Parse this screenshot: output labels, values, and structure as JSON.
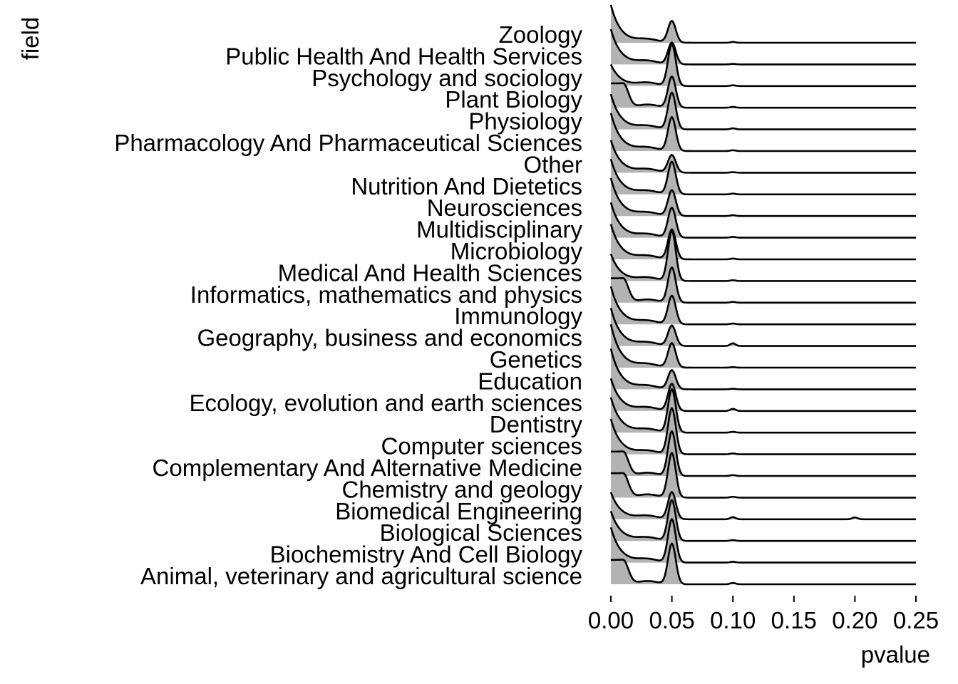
{
  "chart_data": {
    "type": "ridgeline",
    "xlabel": "pvalue",
    "ylabel": "field",
    "xlim": [
      0,
      0.25
    ],
    "x_ticks": [
      "0.00",
      "0.05",
      "0.10",
      "0.15",
      "0.20",
      "0.25"
    ],
    "fill_color": "#b3b3b3",
    "line_color": "#000000",
    "grid": false,
    "categories": [
      "Animal, veterinary and agricultural science",
      "Biochemistry And Cell Biology",
      "Biological Sciences",
      "Biomedical Engineering",
      "Chemistry and geology",
      "Complementary And Alternative Medicine",
      "Computer sciences",
      "Dentistry",
      "Ecology, evolution and earth sciences",
      "Education",
      "Genetics",
      "Geography, business and economics",
      "Immunology",
      "Informatics, mathematics and physics",
      "Medical And Health Sciences",
      "Microbiology",
      "Multidisciplinary",
      "Neurosciences",
      "Nutrition And Dietetics",
      "Other",
      "Pharmacology And Pharmaceutical Sciences",
      "Physiology",
      "Plant Biology",
      "Psychology and sociology",
      "Public Health And Health Services",
      "Zoology"
    ],
    "series": [
      {
        "name": "Animal, veterinary and agricultural science",
        "peak_zero": 0.9,
        "peak_05": 1.5,
        "peak_10": 0.05,
        "peak_20": 0.0,
        "shape": "plateau"
      },
      {
        "name": "Biochemistry And Cell Biology",
        "peak_zero": 1.3,
        "peak_05": 1.6,
        "peak_10": 0.03,
        "peak_20": 0.0,
        "shape": "decay"
      },
      {
        "name": "Biological Sciences",
        "peak_zero": 1.1,
        "peak_05": 1.5,
        "peak_10": 0.03,
        "peak_20": 0.0,
        "shape": "decay"
      },
      {
        "name": "Biomedical Engineering",
        "peak_zero": 1.0,
        "peak_05": 1.0,
        "peak_10": 0.08,
        "peak_20": 0.07,
        "shape": "decay"
      },
      {
        "name": "Chemistry and geology",
        "peak_zero": 0.9,
        "peak_05": 1.65,
        "peak_10": 0.03,
        "peak_20": 0.0,
        "shape": "plateau"
      },
      {
        "name": "Complementary And Alternative Medicine",
        "peak_zero": 0.9,
        "peak_05": 1.65,
        "peak_10": 0.03,
        "peak_20": 0.0,
        "shape": "plateau"
      },
      {
        "name": "Computer sciences",
        "peak_zero": 1.3,
        "peak_05": 1.7,
        "peak_10": 0.03,
        "peak_20": 0.0,
        "shape": "decay"
      },
      {
        "name": "Dentistry",
        "peak_zero": 1.3,
        "peak_05": 1.6,
        "peak_10": 0.03,
        "peak_20": 0.0,
        "shape": "decay"
      },
      {
        "name": "Ecology, evolution and earth sciences",
        "peak_zero": 1.2,
        "peak_05": 1.0,
        "peak_10": 0.08,
        "peak_20": 0.0,
        "shape": "decay"
      },
      {
        "name": "Education",
        "peak_zero": 1.5,
        "peak_05": 0.7,
        "peak_10": 0.02,
        "peak_20": 0.0,
        "shape": "decay"
      },
      {
        "name": "Genetics",
        "peak_zero": 1.6,
        "peak_05": 0.9,
        "peak_10": 0.02,
        "peak_20": 0.0,
        "shape": "decay"
      },
      {
        "name": "Geography, business and economics",
        "peak_zero": 1.4,
        "peak_05": 0.75,
        "peak_10": 0.1,
        "peak_20": 0.0,
        "shape": "decay"
      },
      {
        "name": "Immunology",
        "peak_zero": 1.4,
        "peak_05": 1.05,
        "peak_10": 0.03,
        "peak_20": 0.0,
        "shape": "decay"
      },
      {
        "name": "Informatics, mathematics and physics",
        "peak_zero": 0.9,
        "peak_05": 1.3,
        "peak_10": 0.03,
        "peak_20": 0.0,
        "shape": "plateau"
      },
      {
        "name": "Medical And Health Sciences",
        "peak_zero": 1.0,
        "peak_05": 1.85,
        "peak_10": 0.03,
        "peak_20": 0.0,
        "shape": "decay"
      },
      {
        "name": "Microbiology",
        "peak_zero": 1.3,
        "peak_05": 1.1,
        "peak_10": 0.03,
        "peak_20": 0.0,
        "shape": "decay"
      },
      {
        "name": "Multidisciplinary",
        "peak_zero": 1.3,
        "peak_05": 1.1,
        "peak_10": 0.03,
        "peak_20": 0.0,
        "shape": "decay"
      },
      {
        "name": "Neurosciences",
        "peak_zero": 1.4,
        "peak_05": 0.95,
        "peak_10": 0.03,
        "peak_20": 0.0,
        "shape": "decay"
      },
      {
        "name": "Nutrition And Dietetics",
        "peak_zero": 1.3,
        "peak_05": 1.2,
        "peak_10": 0.03,
        "peak_20": 0.0,
        "shape": "decay"
      },
      {
        "name": "Other",
        "peak_zero": 1.2,
        "peak_05": 0.65,
        "peak_10": 0.02,
        "peak_20": 0.0,
        "shape": "decay"
      },
      {
        "name": "Pharmacology And Pharmaceutical Sciences",
        "peak_zero": 1.4,
        "peak_05": 1.25,
        "peak_10": 0.03,
        "peak_20": 0.0,
        "shape": "decay"
      },
      {
        "name": "Physiology",
        "peak_zero": 1.3,
        "peak_05": 1.35,
        "peak_10": 0.04,
        "peak_20": 0.0,
        "shape": "decay"
      },
      {
        "name": "Plant Biology",
        "peak_zero": 0.9,
        "peak_05": 1.15,
        "peak_10": 0.03,
        "peak_20": 0.0,
        "shape": "plateau"
      },
      {
        "name": "Psychology and sociology",
        "peak_zero": 0.8,
        "peak_05": 1.55,
        "peak_10": 0.03,
        "peak_20": 0.0,
        "shape": "decay"
      },
      {
        "name": "Public Health And Health Services",
        "peak_zero": 1.3,
        "peak_05": 0.8,
        "peak_10": 0.02,
        "peak_20": 0.0,
        "shape": "decay"
      },
      {
        "name": "Zoology",
        "peak_zero": 1.4,
        "peak_05": 0.8,
        "peak_10": 0.03,
        "peak_20": 0.0,
        "shape": "decay"
      }
    ]
  }
}
